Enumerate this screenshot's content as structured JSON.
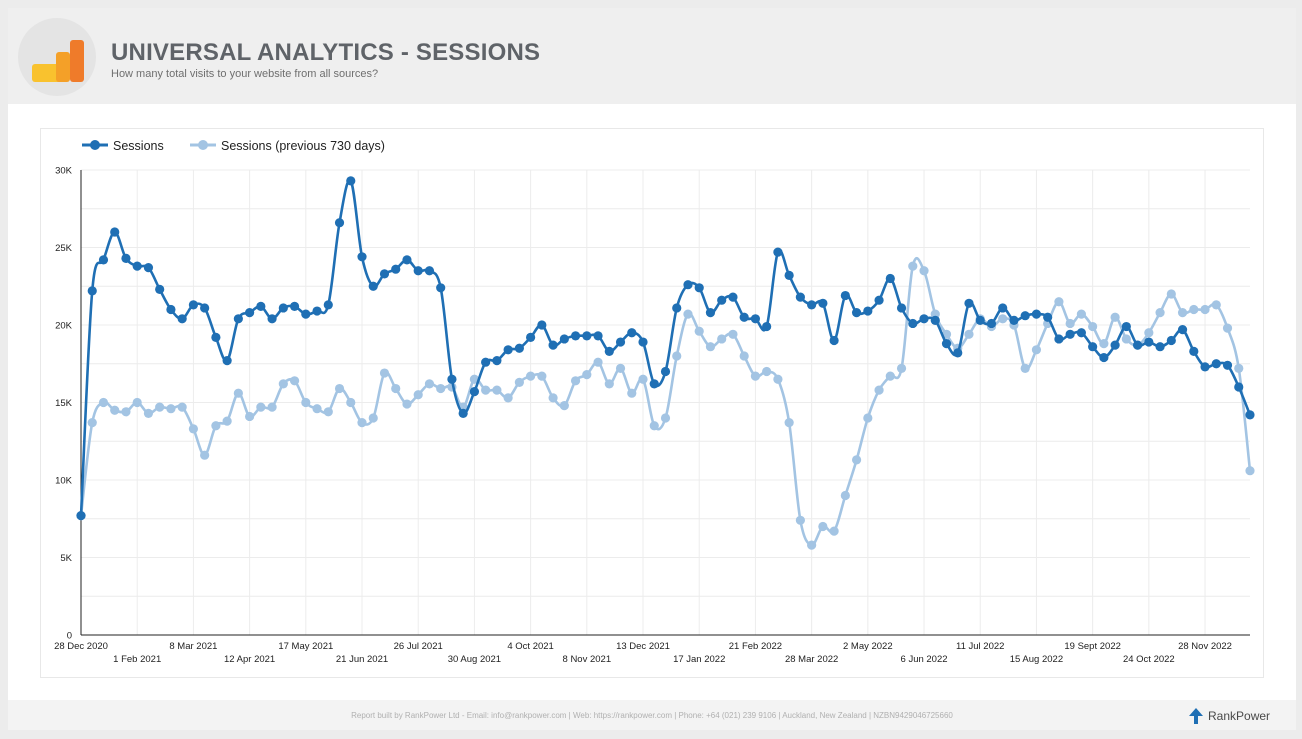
{
  "header": {
    "title": "UNIVERSAL ANALYTICS - SESSIONS",
    "subtitle": "How many total visits to your website from all sources?",
    "logo_icon": "google-analytics-icon"
  },
  "footer": {
    "text": "Report built by RankPower Ltd - Email: info@rankpower.com | Web: https://rankpower.com | Phone: +64 (021) 239 9106 | Auckland, New Zealand | NZBN9429046725660",
    "brand": "RankPower",
    "brand_icon": "arrow-up-icon"
  },
  "colors": {
    "current": "#1f6fb4",
    "previous": "#a3c4e3",
    "grid": "#ececec",
    "axis": "#222222"
  },
  "chart_data": {
    "type": "line",
    "title": "",
    "xlabel": "",
    "ylabel": "",
    "ylim": [
      0,
      30000
    ],
    "y_ticks": [
      0,
      5000,
      10000,
      15000,
      20000,
      25000,
      30000
    ],
    "y_tick_labels": [
      "0",
      "5K",
      "10K",
      "15K",
      "20K",
      "25K",
      "30K"
    ],
    "x_tick_labels": [
      "28 Dec 2020",
      "1 Feb 2021",
      "8 Mar 2021",
      "12 Apr 2021",
      "17 May 2021",
      "21 Jun 2021",
      "26 Jul 2021",
      "30 Aug 2021",
      "4 Oct 2021",
      "8 Nov 2021",
      "13 Dec 2021",
      "17 Jan 2022",
      "21 Feb 2022",
      "28 Mar 2022",
      "2 May 2022",
      "6 Jun 2022",
      "11 Jul 2022",
      "15 Aug 2022",
      "19 Sept 2022",
      "24 Oct 2022",
      "28 Nov 2022"
    ],
    "x_tick_week_index": [
      0,
      5,
      10,
      15,
      20,
      25,
      30,
      35,
      40,
      45,
      50,
      55,
      60,
      65,
      70,
      75,
      80,
      85,
      90,
      95,
      100
    ],
    "grid": true,
    "legend_position": "top-left",
    "series": [
      {
        "name": "Sessions",
        "values": [
          7700,
          22200,
          24200,
          26000,
          24300,
          23800,
          23700,
          22300,
          21000,
          20400,
          21300,
          21100,
          19200,
          17700,
          20400,
          20800,
          21200,
          20400,
          21100,
          21200,
          20700,
          20900,
          21300,
          26600,
          29300,
          24400,
          22500,
          23300,
          23600,
          24200,
          23500,
          23500,
          22400,
          16500,
          14300,
          15700,
          17600,
          17700,
          18400,
          18500,
          19200,
          20000,
          18700,
          19100,
          19300,
          19300,
          19300,
          18300,
          18900,
          19500,
          18900,
          16200,
          17000,
          21100,
          22600,
          22400,
          20800,
          21600,
          21800,
          20500,
          20400,
          19900,
          24700,
          23200,
          21800,
          21300,
          21400,
          19000,
          21900,
          20800,
          20900,
          21600,
          23000,
          21100,
          20100,
          20400,
          20300,
          18800,
          18200,
          21400,
          20300,
          20100,
          21100,
          20300,
          20600,
          20700,
          20500,
          19100,
          19400,
          19500,
          18600,
          17900,
          18700,
          19900,
          18700,
          18900,
          18600,
          19000,
          19700,
          18300,
          17300,
          17500,
          17400,
          16000,
          14200
        ]
      },
      {
        "name": "Sessions (previous 730 days)",
        "values": [
          7700,
          13700,
          15000,
          14500,
          14400,
          15000,
          14300,
          14700,
          14600,
          14700,
          13300,
          11600,
          13500,
          13800,
          15600,
          14100,
          14700,
          14700,
          16200,
          16400,
          15000,
          14600,
          14400,
          15900,
          15000,
          13700,
          14000,
          16900,
          15900,
          14900,
          15500,
          16200,
          15900,
          16000,
          14700,
          16500,
          15800,
          15800,
          15300,
          16300,
          16700,
          16700,
          15300,
          14800,
          16400,
          16800,
          17600,
          16200,
          17200,
          15600,
          16500,
          13500,
          14000,
          18000,
          20700,
          19600,
          18600,
          19100,
          19400,
          18000,
          16700,
          17000,
          16500,
          13700,
          7400,
          5800,
          7000,
          6700,
          9000,
          11300,
          14000,
          15800,
          16700,
          17200,
          23800,
          23500,
          20700,
          19400,
          18500,
          19400,
          20400,
          19900,
          20400,
          20000,
          17200,
          18400,
          20100,
          21500,
          20100,
          20700,
          19900,
          18800,
          20500,
          19100,
          18700,
          19500,
          20800,
          22000,
          20800,
          21000,
          21000,
          21300,
          19800,
          17200,
          10600
        ]
      }
    ]
  }
}
